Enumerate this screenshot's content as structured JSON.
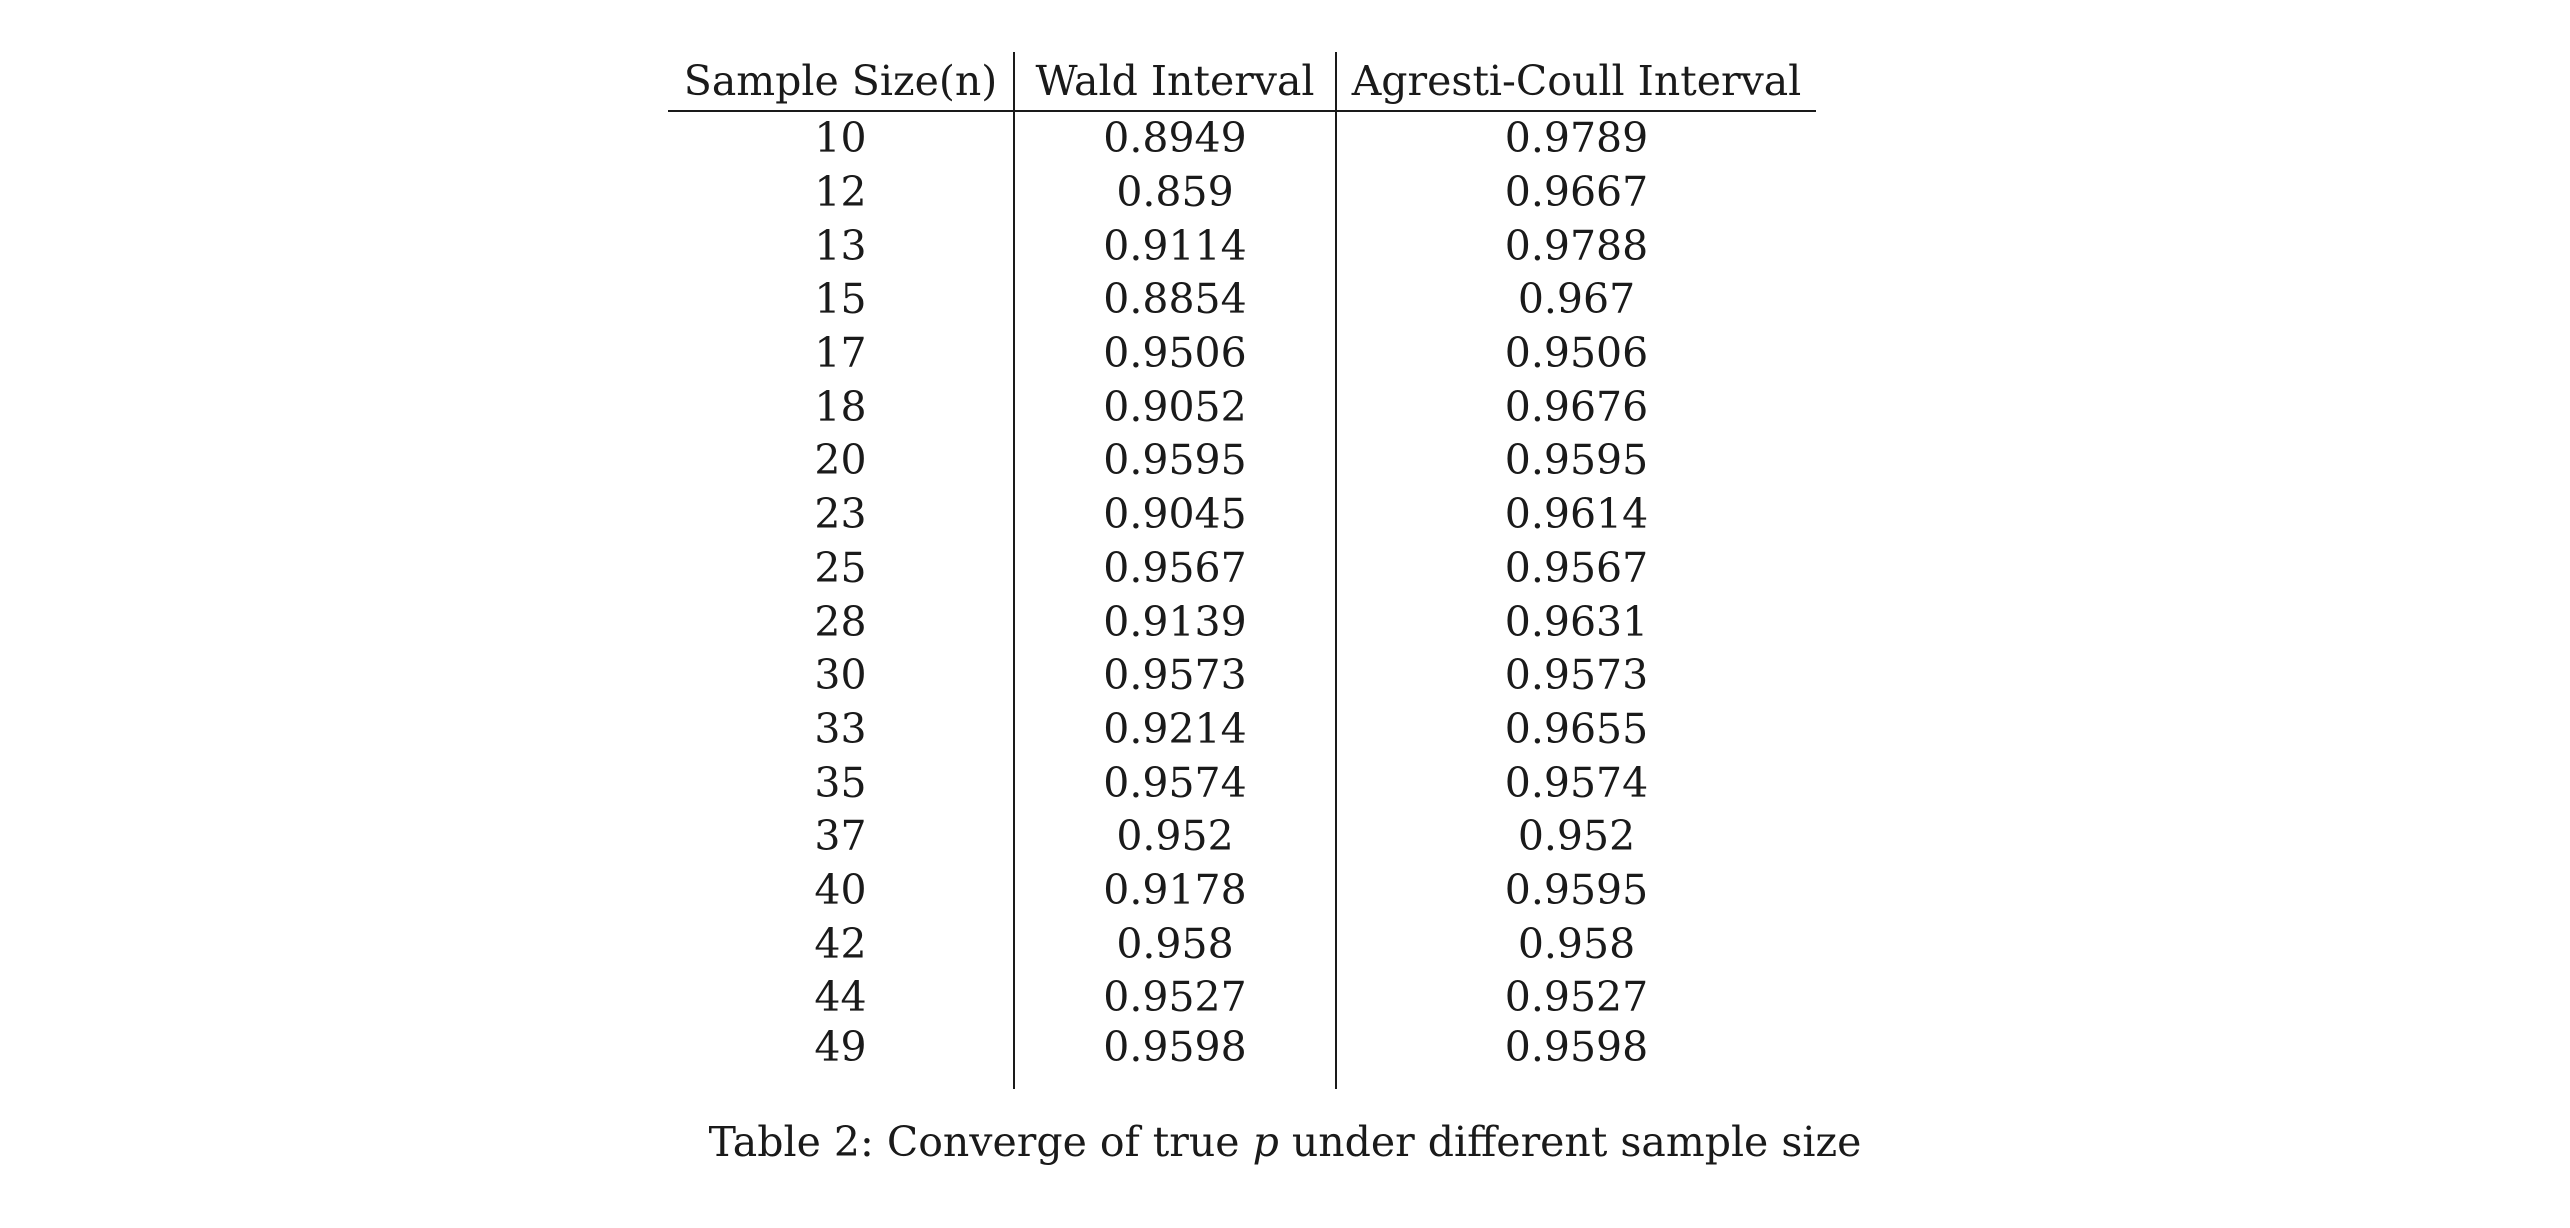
{
  "table": {
    "headers": [
      "Sample Size(n)",
      "Wald Interval",
      "Agresti-Coull Interval"
    ],
    "rows": [
      [
        "10",
        "0.8949",
        "0.9789"
      ],
      [
        "12",
        "0.859",
        "0.9667"
      ],
      [
        "13",
        "0.9114",
        "0.9788"
      ],
      [
        "15",
        "0.8854",
        "0.967"
      ],
      [
        "17",
        "0.9506",
        "0.9506"
      ],
      [
        "18",
        "0.9052",
        "0.9676"
      ],
      [
        "20",
        "0.9595",
        "0.9595"
      ],
      [
        "23",
        "0.9045",
        "0.9614"
      ],
      [
        "25",
        "0.9567",
        "0.9567"
      ],
      [
        "28",
        "0.9139",
        "0.9631"
      ],
      [
        "30",
        "0.9573",
        "0.9573"
      ],
      [
        "33",
        "0.9214",
        "0.9655"
      ],
      [
        "35",
        "0.9574",
        "0.9574"
      ],
      [
        "37",
        "0.952",
        "0.952"
      ],
      [
        "40",
        "0.9178",
        "0.9595"
      ],
      [
        "42",
        "0.958",
        "0.958"
      ],
      [
        "44",
        "0.9527",
        "0.9527"
      ],
      [
        "49",
        "0.9598",
        "0.9598"
      ]
    ]
  },
  "caption": {
    "label": "Table 2:",
    "text_before": "Converge of true",
    "variable": "p",
    "text_after": "under different sample size"
  }
}
